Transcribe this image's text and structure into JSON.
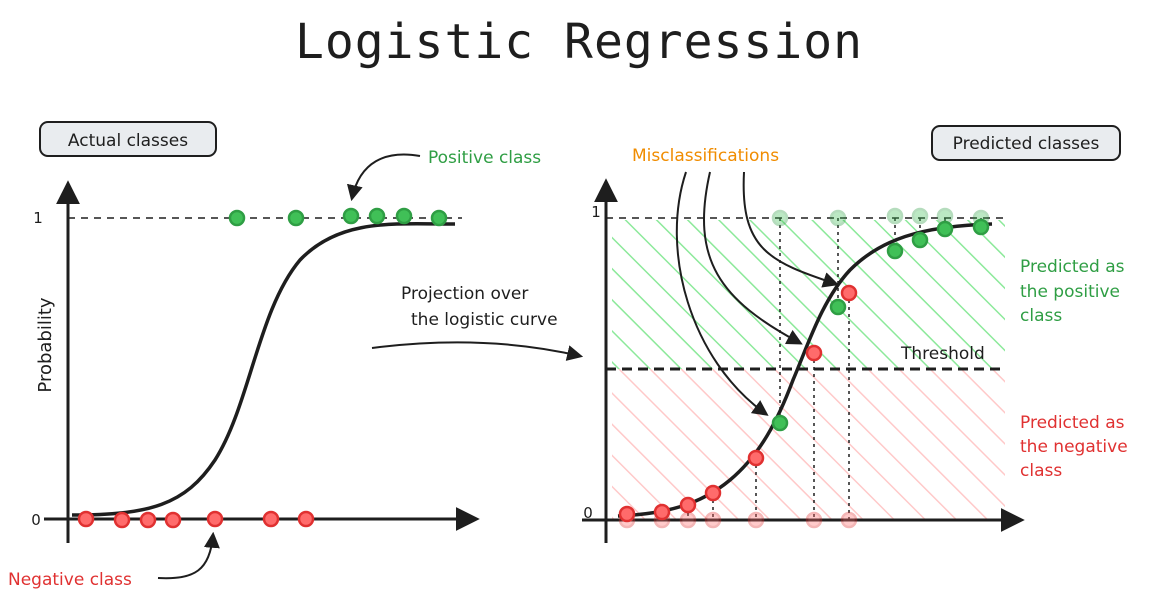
{
  "title": "Logistic Regression",
  "left_panel": {
    "badge": "Actual classes",
    "y_axis_label": "Probability",
    "tick_one": "1",
    "tick_zero": "0",
    "positive_callout": "Positive class",
    "negative_callout": "Negative class"
  },
  "middle": {
    "projection_line1": "Projection over",
    "projection_line2": "the logistic curve"
  },
  "right_panel": {
    "badge": "Predicted classes",
    "tick_one": "1",
    "tick_zero": "0",
    "misclassifications": "Misclassifications",
    "threshold": "Threshold",
    "predicted_positive": [
      "Predicted as",
      "the positive",
      "class"
    ],
    "predicted_negative": [
      "Predicted as",
      "the negative",
      "class"
    ]
  },
  "colors": {
    "positive": "#2f9e44",
    "positive_fill": "#40c057",
    "negative": "#e03131",
    "negative_fill": "#ff6b6b",
    "misclass_label": "#f08c00",
    "ink": "#1e1e1e",
    "badge_bg": "#e9ecef"
  }
}
